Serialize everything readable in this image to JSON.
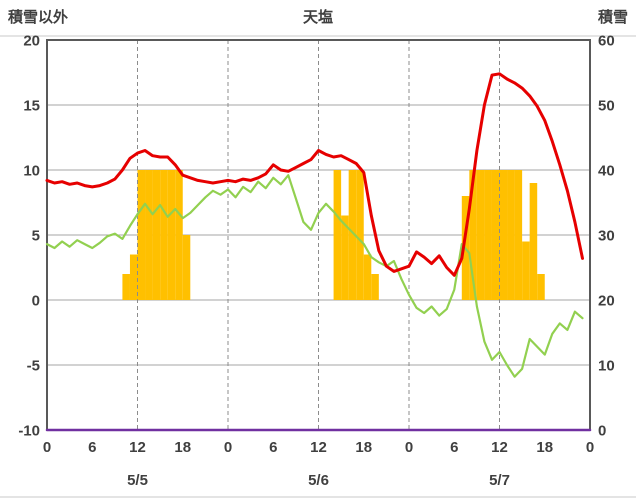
{
  "header": {
    "left_axis_title": "積雪以外",
    "title": "天塩",
    "right_axis_title": "積雪"
  },
  "chart_data": {
    "type": "line",
    "title": "天塩",
    "left_axis": {
      "label": "積雪以外",
      "min": -10,
      "max": 20,
      "ticks": [
        20,
        15,
        10,
        5,
        0,
        -5,
        -10
      ]
    },
    "right_axis": {
      "label": "積雪",
      "min": 0,
      "max": 60,
      "ticks": [
        60,
        50,
        40,
        30,
        20,
        10,
        0
      ]
    },
    "x_axis": {
      "total_hours": 72,
      "tick_step_hours": 6,
      "hour_labels": [
        "0",
        "6",
        "12",
        "18",
        "0",
        "6",
        "12",
        "18",
        "0",
        "6",
        "12",
        "18",
        "0"
      ],
      "date_labels": [
        "5/5",
        "5/6",
        "5/7"
      ],
      "gridline_hours": [
        12,
        24,
        36,
        48,
        60
      ]
    },
    "grid": {
      "h_color": "#a6a6a6",
      "v_color": "#8c8c8c",
      "frame_color": "#595959",
      "divider_color": "#c8c8c8"
    },
    "series": [
      {
        "name": "sunshine",
        "type": "bar",
        "axis": "left",
        "color": "#ffc000",
        "values": [
          0,
          0,
          0,
          0,
          0,
          0,
          0,
          0,
          0,
          0,
          2,
          3.5,
          10,
          10,
          10,
          10,
          10,
          10,
          5,
          0,
          0,
          0,
          0,
          0,
          0,
          0,
          0,
          0,
          0,
          0,
          0,
          0,
          0,
          0,
          0,
          0,
          0,
          0,
          10,
          6.5,
          10,
          10,
          3.5,
          2,
          0,
          0,
          0,
          0,
          0,
          0,
          0,
          0,
          0,
          0,
          0,
          8,
          10,
          10,
          10,
          10,
          10,
          10,
          10,
          4.5,
          9,
          2,
          0,
          0,
          0,
          0,
          0,
          0
        ]
      },
      {
        "name": "green-series",
        "type": "line",
        "axis": "left",
        "color": "#92d050",
        "width": 2.2,
        "values": [
          4.3,
          4.0,
          4.5,
          4.1,
          4.6,
          4.3,
          4.0,
          4.4,
          4.9,
          5.1,
          4.7,
          5.7,
          6.6,
          7.4,
          6.6,
          7.3,
          6.4,
          7.0,
          6.3,
          6.7,
          7.3,
          7.9,
          8.4,
          8.1,
          8.5,
          7.9,
          8.7,
          8.3,
          9.1,
          8.6,
          9.4,
          8.9,
          9.6,
          7.8,
          6.0,
          5.4,
          6.7,
          7.4,
          6.8,
          6.1,
          5.5,
          4.9,
          4.3,
          3.3,
          2.9,
          2.6,
          3.0,
          1.6,
          0.4,
          -0.6,
          -1.0,
          -0.5,
          -1.2,
          -0.7,
          0.8,
          4.3,
          3.6,
          -0.5,
          -3.2,
          -4.6,
          -4.0,
          -5.0,
          -5.9,
          -5.3,
          -3.0,
          -3.6,
          -4.2,
          -2.6,
          -1.8,
          -2.3,
          -0.9,
          -1.4
        ]
      },
      {
        "name": "temperature",
        "type": "line",
        "axis": "left",
        "color": "#e60000",
        "width": 3,
        "values": [
          9.2,
          9.0,
          9.1,
          8.9,
          9.0,
          8.8,
          8.7,
          8.8,
          9.0,
          9.3,
          10.0,
          10.9,
          11.3,
          11.5,
          11.1,
          11.0,
          11.0,
          10.4,
          9.6,
          9.4,
          9.2,
          9.1,
          9.0,
          9.1,
          9.2,
          9.1,
          9.3,
          9.2,
          9.4,
          9.7,
          10.4,
          10.0,
          9.9,
          10.2,
          10.5,
          10.8,
          11.5,
          11.2,
          11.0,
          11.1,
          10.8,
          10.5,
          9.8,
          6.5,
          3.8,
          2.6,
          2.2,
          2.4,
          2.6,
          3.7,
          3.3,
          2.8,
          3.4,
          2.5,
          1.9,
          3.2,
          7.0,
          11.5,
          15.0,
          17.3,
          17.4,
          17.0,
          16.7,
          16.3,
          15.7,
          14.9,
          13.8,
          12.2,
          10.4,
          8.4,
          6.0,
          3.2
        ]
      },
      {
        "name": "snow-depth",
        "type": "line",
        "axis": "right",
        "color": "#7030a0",
        "width": 2.5,
        "x": [
          0,
          72
        ],
        "values": [
          0,
          0
        ]
      }
    ]
  }
}
